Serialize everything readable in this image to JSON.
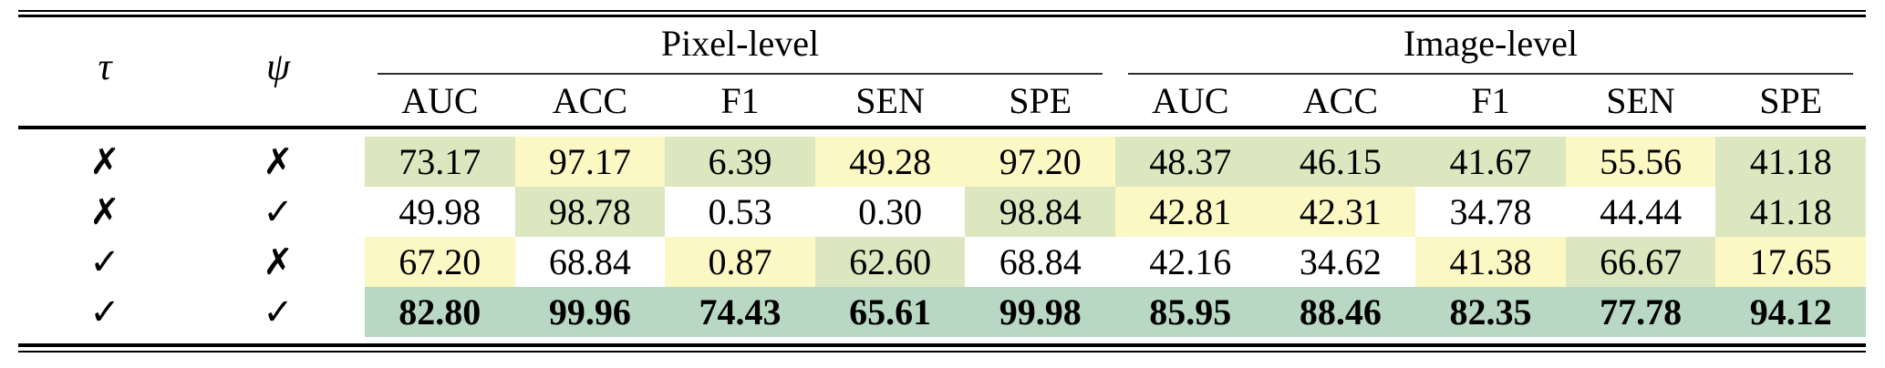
{
  "colors": {
    "g": "#dce7c0",
    "y": "#fbf8c4",
    "t": "#b8d8c3",
    "w": "#ffffff"
  },
  "header": {
    "tau": "τ",
    "psi": "ψ",
    "groups": [
      {
        "label": "Pixel-level"
      },
      {
        "label": "Image-level"
      }
    ],
    "metrics": [
      "AUC",
      "ACC",
      "F1",
      "SEN",
      "SPE",
      "AUC",
      "ACC",
      "F1",
      "SEN",
      "SPE"
    ]
  },
  "rows": [
    {
      "tau": "✗",
      "psi": "✗",
      "bold": false,
      "values": [
        "73.17",
        "97.17",
        "6.39",
        "49.28",
        "97.20",
        "48.37",
        "46.15",
        "41.67",
        "55.56",
        "41.18"
      ],
      "cell_colors": [
        "g",
        "y",
        "g",
        "y",
        "y",
        "g",
        "g",
        "g",
        "y",
        "g"
      ]
    },
    {
      "tau": "✗",
      "psi": "✓",
      "bold": false,
      "values": [
        "49.98",
        "98.78",
        "0.53",
        "0.30",
        "98.84",
        "42.81",
        "42.31",
        "34.78",
        "44.44",
        "41.18"
      ],
      "cell_colors": [
        "w",
        "g",
        "w",
        "w",
        "g",
        "y",
        "y",
        "w",
        "w",
        "g"
      ]
    },
    {
      "tau": "✓",
      "psi": "✗",
      "bold": false,
      "values": [
        "67.20",
        "68.84",
        "0.87",
        "62.60",
        "68.84",
        "42.16",
        "34.62",
        "41.38",
        "66.67",
        "17.65"
      ],
      "cell_colors": [
        "y",
        "w",
        "y",
        "g",
        "w",
        "w",
        "w",
        "y",
        "g",
        "y"
      ]
    },
    {
      "tau": "✓",
      "psi": "✓",
      "bold": true,
      "values": [
        "82.80",
        "99.96",
        "74.43",
        "65.61",
        "99.98",
        "85.95",
        "88.46",
        "82.35",
        "77.78",
        "94.12"
      ],
      "cell_colors": [
        "t",
        "t",
        "t",
        "t",
        "t",
        "t",
        "t",
        "t",
        "t",
        "t"
      ]
    }
  ]
}
